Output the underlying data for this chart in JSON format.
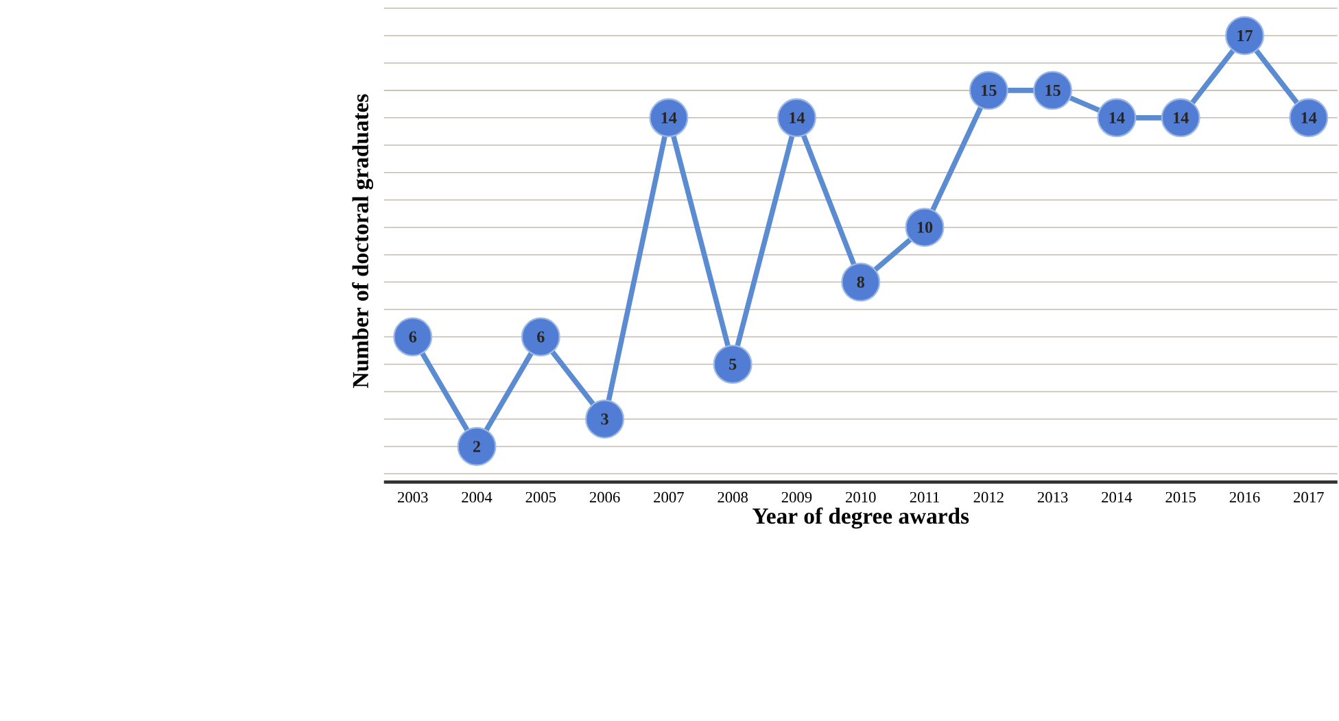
{
  "chart_data": {
    "type": "line",
    "xlabel": "Year of degree awards",
    "ylabel": "Number of doctoral graduates",
    "categories": [
      "2003",
      "2004",
      "2005",
      "2006",
      "2007",
      "2008",
      "2009",
      "2010",
      "2011",
      "2012",
      "2013",
      "2014",
      "2015",
      "2016",
      "2017"
    ],
    "values": [
      6,
      2,
      6,
      3,
      14,
      5,
      14,
      8,
      10,
      15,
      15,
      14,
      14,
      17,
      14
    ],
    "color": "#5b8bd0",
    "grid": "y",
    "tick_labels": "x",
    "marker": "circle",
    "line_style": "solid",
    "data_labels": true
  }
}
